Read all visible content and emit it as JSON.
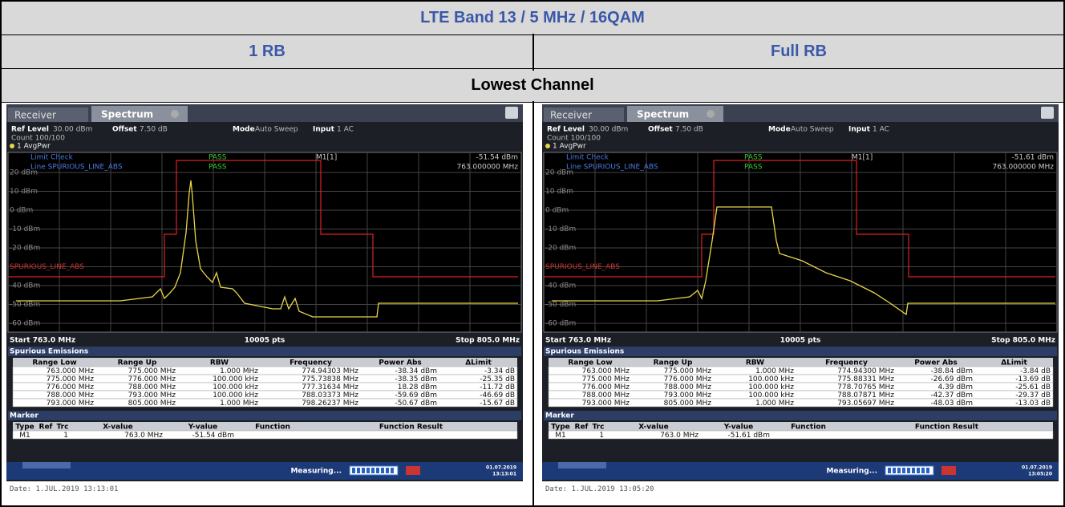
{
  "header": {
    "title": "LTE Band 13 / 5 MHz / 16QAM",
    "columns": [
      "1 RB",
      "Full RB"
    ],
    "row_label": "Lowest Channel"
  },
  "panels": [
    {
      "tabs": [
        "Receiver",
        "Spectrum"
      ],
      "ref_level_label": "Ref Level",
      "ref_level": "30.00 dBm",
      "offset_label": "Offset",
      "offset": "7.50 dB",
      "mode_label": "Mode",
      "mode": "Auto Sweep",
      "input_label": "Input",
      "input": "1 AC",
      "count": "Count 100/100",
      "trace_label": "1 AvgPwr",
      "limit_check": "Limit Check",
      "limit_result": "PASS",
      "line_name": "Line SPURIOUS_LINE_ABS",
      "line_result": "PASS",
      "marker_name": "M1[1]",
      "marker_level": "-51.54 dBm",
      "marker_freq": "763.000000 MHz",
      "y_labels": [
        "20 dBm",
        "10 dBm",
        "0 dBm",
        "-10 dBm",
        "-20 dBm",
        "SPURIOUS_LINE_ABS",
        "-40 dBm",
        "-50 dBm",
        "-60 dBm"
      ],
      "start": "Start 763.0 MHz",
      "points": "10005 pts",
      "stop": "Stop 805.0 MHz",
      "spurious": {
        "title": "Spurious Emissions",
        "columns": [
          "Range Low",
          "Range Up",
          "RBW",
          "Frequency",
          "Power Abs",
          "ΔLimit"
        ],
        "rows": [
          [
            "763.000 MHz",
            "775.000 MHz",
            "1.000 MHz",
            "774.94303 MHz",
            "-38.34 dBm",
            "-3.34 dB"
          ],
          [
            "775.000 MHz",
            "776.000 MHz",
            "100.000 kHz",
            "775.73838 MHz",
            "-38.35 dBm",
            "-25.35 dB"
          ],
          [
            "776.000 MHz",
            "788.000 MHz",
            "100.000 kHz",
            "777.31634 MHz",
            "18.28 dBm",
            "-11.72 dB"
          ],
          [
            "788.000 MHz",
            "793.000 MHz",
            "100.000 kHz",
            "788.03373 MHz",
            "-59.69 dBm",
            "-46.69 dB"
          ],
          [
            "793.000 MHz",
            "805.000 MHz",
            "1.000 MHz",
            "798.26237 MHz",
            "-50.67 dBm",
            "-15.67 dB"
          ]
        ]
      },
      "marker_table": {
        "title": "Marker",
        "columns": [
          "Type",
          "Ref",
          "Trc",
          "X-value",
          "Y-value",
          "Function",
          "Function Result"
        ],
        "row": {
          "type": "M1",
          "trc": "1",
          "x_value": "763.0 MHz",
          "y_value": "-51.54 dBm"
        }
      },
      "status": "Measuring...",
      "status_date": "01.07.2019",
      "status_time": "13:13:01",
      "date": "Date: 1.JUL.2019  13:13:01"
    },
    {
      "tabs": [
        "Receiver",
        "Spectrum"
      ],
      "ref_level_label": "Ref Level",
      "ref_level": "30.00 dBm",
      "offset_label": "Offset",
      "offset": "7.50 dB",
      "mode_label": "Mode",
      "mode": "Auto Sweep",
      "input_label": "Input",
      "input": "1 AC",
      "count": "Count 100/100",
      "trace_label": "1 AvgPwr",
      "limit_check": "Limit Check",
      "limit_result": "PASS",
      "line_name": "Line SPURIOUS_LINE_ABS",
      "line_result": "PASS",
      "marker_name": "M1[1]",
      "marker_level": "-51.61 dBm",
      "marker_freq": "763.000000 MHz",
      "y_labels": [
        "20 dBm",
        "10 dBm",
        "0 dBm",
        "-10 dBm",
        "-20 dBm",
        "SPURIOUS_LINE_ABS",
        "-40 dBm",
        "-50 dBm",
        "-60 dBm"
      ],
      "start": "Start 763.0 MHz",
      "points": "10005 pts",
      "stop": "Stop 805.0 MHz",
      "spurious": {
        "title": "Spurious Emissions",
        "columns": [
          "Range Low",
          "Range Up",
          "RBW",
          "Frequency",
          "Power Abs",
          "ΔLimit"
        ],
        "rows": [
          [
            "763.000 MHz",
            "775.000 MHz",
            "1.000 MHz",
            "774.94300 MHz",
            "-38.84 dBm",
            "-3.84 dB"
          ],
          [
            "775.000 MHz",
            "776.000 MHz",
            "100.000 kHz",
            "775.88331 MHz",
            "-26.69 dBm",
            "-13.69 dB"
          ],
          [
            "776.000 MHz",
            "788.000 MHz",
            "100.000 kHz",
            "778.70765 MHz",
            "4.39 dBm",
            "-25.61 dB"
          ],
          [
            "788.000 MHz",
            "793.000 MHz",
            "100.000 kHz",
            "788.07871 MHz",
            "-42.37 dBm",
            "-29.37 dB"
          ],
          [
            "793.000 MHz",
            "805.000 MHz",
            "1.000 MHz",
            "793.05697 MHz",
            "-48.03 dBm",
            "-13.03 dB"
          ]
        ]
      },
      "marker_table": {
        "title": "Marker",
        "columns": [
          "Type",
          "Ref",
          "Trc",
          "X-value",
          "Y-value",
          "Function",
          "Function Result"
        ],
        "row": {
          "type": "M1",
          "trc": "1",
          "x_value": "763.0 MHz",
          "y_value": "-51.61 dBm"
        }
      },
      "status": "Measuring...",
      "status_date": "01.07.2019",
      "status_time": "13:05:20",
      "date": "Date: 1.JUL.2019  13:05:20"
    }
  ]
}
